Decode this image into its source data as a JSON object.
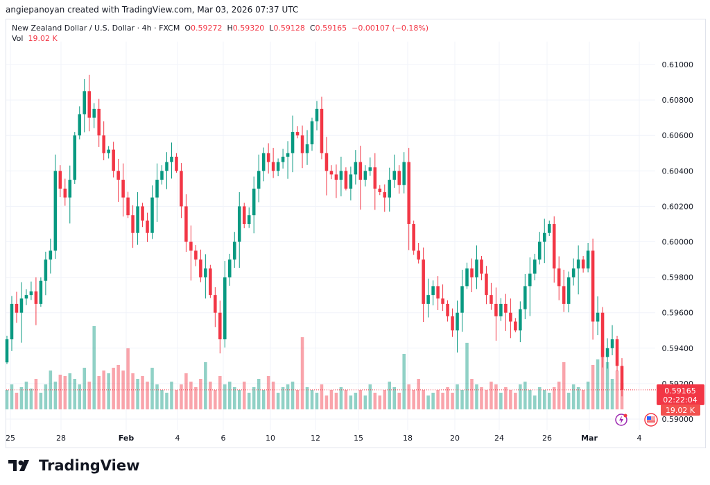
{
  "credit": "angiepanoyan created with TradingView.com, Mar 03, 2026 07:37 UTC",
  "legend": {
    "symbol": "New Zealand Dollar / U.S. Dollar · 4h · FXCM",
    "o_label": "O",
    "o": "0.59272",
    "h_label": "H",
    "h": "0.59320",
    "l_label": "L",
    "l": "0.59128",
    "c_label": "C",
    "c": "0.59165",
    "change": "−0.00107 (−0.18%)",
    "vol_label": "Vol",
    "vol": "19.02 K"
  },
  "price_tag": {
    "price": "0.59165",
    "countdown": "02:22:04",
    "volume": "19.02 K"
  },
  "logo": "TradingView",
  "colors": {
    "up": "#089981",
    "down": "#f23645"
  },
  "chart_data": {
    "type": "candlestick",
    "title": "New Zealand Dollar / U.S. Dollar · 4h · FXCM",
    "ylim": [
      0.59,
      0.61
    ],
    "yticks": [
      "0.61000",
      "0.60800",
      "0.60600",
      "0.60400",
      "0.60200",
      "0.60000",
      "0.59800",
      "0.59600",
      "0.59400",
      "0.59200",
      "0.59000"
    ],
    "xticks": [
      "25",
      "28",
      "Feb",
      "4",
      "6",
      "10",
      "12",
      "15",
      "18",
      "20",
      "24",
      "26",
      "Mar",
      "4"
    ],
    "first_open": 0.5932,
    "close": [
      0.5945,
      0.5965,
      0.596,
      0.5968,
      0.597,
      0.5972,
      0.5965,
      0.5978,
      0.599,
      0.5995,
      0.604,
      0.603,
      0.6025,
      0.6035,
      0.606,
      0.6072,
      0.6085,
      0.607,
      0.6075,
      0.606,
      0.605,
      0.6052,
      0.604,
      0.6035,
      0.6025,
      0.6015,
      0.6005,
      0.602,
      0.6012,
      0.6005,
      0.6025,
      0.6035,
      0.604,
      0.6045,
      0.6048,
      0.604,
      0.602,
      0.6,
      0.5995,
      0.599,
      0.598,
      0.5985,
      0.597,
      0.596,
      0.5945,
      0.598,
      0.599,
      0.6,
      0.602,
      0.601,
      0.6015,
      0.603,
      0.604,
      0.605,
      0.6045,
      0.604,
      0.6045,
      0.6048,
      0.605,
      0.6062,
      0.606,
      0.605,
      0.6055,
      0.6068,
      0.6075,
      0.605,
      0.604,
      0.6038,
      0.6035,
      0.604,
      0.603,
      0.6038,
      0.6045,
      0.6035,
      0.604,
      0.6042,
      0.603,
      0.6028,
      0.6025,
      0.6035,
      0.604,
      0.6032,
      0.6045,
      0.601,
      0.5995,
      0.599,
      0.5965,
      0.597,
      0.5975,
      0.5968,
      0.5965,
      0.5958,
      0.595,
      0.596,
      0.5975,
      0.5985,
      0.598,
      0.599,
      0.5982,
      0.597,
      0.5965,
      0.5958,
      0.5965,
      0.596,
      0.5955,
      0.595,
      0.5962,
      0.5975,
      0.5982,
      0.599,
      0.6,
      0.6005,
      0.601,
      0.5985,
      0.5975,
      0.5965,
      0.598,
      0.5985,
      0.599,
      0.5985,
      0.5995,
      0.5955,
      0.596,
      0.5935,
      0.594,
      0.5945,
      0.593,
      0.59165
    ],
    "volume_k": [
      14,
      18,
      12,
      16,
      20,
      15,
      22,
      12,
      18,
      28,
      20,
      25,
      24,
      26,
      22,
      18,
      30,
      20,
      60,
      24,
      28,
      26,
      30,
      32,
      28,
      44,
      26,
      22,
      24,
      20,
      30,
      18,
      14,
      12,
      20,
      14,
      18,
      26,
      20,
      16,
      22,
      34,
      20,
      14,
      24,
      18,
      20,
      16,
      14,
      20,
      12,
      16,
      22,
      14,
      24,
      20,
      12,
      16,
      18,
      20,
      14,
      52,
      16,
      14,
      12,
      18,
      10,
      14,
      12,
      16,
      14,
      10,
      12,
      14,
      10,
      18,
      12,
      10,
      14,
      20,
      16,
      12,
      40,
      18,
      14,
      22,
      14,
      10,
      12,
      14,
      12,
      16,
      12,
      18,
      14,
      48,
      22,
      18,
      16,
      14,
      20,
      18,
      12,
      16,
      14,
      12,
      18,
      20,
      14,
      10,
      16,
      14,
      12,
      16,
      20,
      34,
      12,
      18,
      16,
      14,
      20,
      32,
      36,
      46,
      34,
      22,
      28,
      19.02
    ]
  }
}
